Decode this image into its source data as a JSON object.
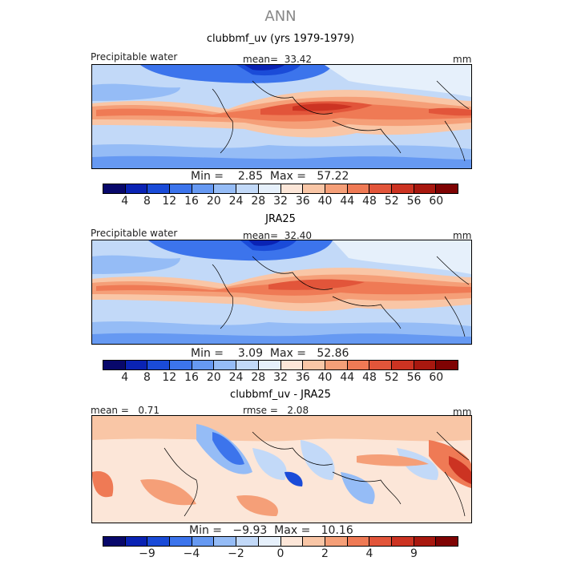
{
  "supertitle": "ANN",
  "colors": {
    "abs": [
      "#08086b",
      "#0a23b4",
      "#1a4bd8",
      "#3c74ec",
      "#6699f2",
      "#95bcf6",
      "#c2d9f8",
      "#e6f0fb",
      "#fce6d8",
      "#f9c6a6",
      "#f59f78",
      "#ef7a55",
      "#e2553a",
      "#cc3322",
      "#a8180f",
      "#7f0303"
    ],
    "diff": [
      "#08086b",
      "#0a23b4",
      "#1a4bd8",
      "#3c74ec",
      "#6699f2",
      "#95bcf6",
      "#c2d9f8",
      "#e6f0fb",
      "#fce6d8",
      "#f9c6a6",
      "#f59f78",
      "#ef7a55",
      "#e2553a",
      "#cc3322",
      "#a8180f",
      "#7f0303"
    ]
  },
  "panels": [
    {
      "title": "clubbmf_uv (yrs 1979-1979)",
      "left_label": "Precipitable water",
      "center_label": "mean=  33.42",
      "right_label": "mm",
      "min_max": "Min =    2.85  Max =   57.22",
      "colorbar_ticks": [
        "4",
        "8",
        "12",
        "16",
        "20",
        "24",
        "28",
        "32",
        "36",
        "40",
        "44",
        "48",
        "52",
        "56",
        "60"
      ]
    },
    {
      "title": "JRA25",
      "left_label": "Precipitable water",
      "center_label": "mean=  32.40",
      "right_label": "mm",
      "min_max": "Min =    3.09  Max =   52.86",
      "colorbar_ticks": [
        "4",
        "8",
        "12",
        "16",
        "20",
        "24",
        "28",
        "32",
        "36",
        "40",
        "44",
        "48",
        "52",
        "56",
        "60"
      ]
    },
    {
      "title": "clubbmf_uv - JRA25",
      "left_label": "mean =   0.71",
      "center_label": "rmse =   2.08",
      "right_label": "mm",
      "min_max": "Min =   −9.93  Max =   10.16",
      "colorbar_ticks": [
        "−9",
        "−4",
        "−2",
        "0",
        "2",
        "4",
        "9"
      ]
    }
  ],
  "chart_data": [
    {
      "type": "heatmap",
      "title": "clubbmf_uv (yrs 1979-1979)",
      "variable": "Precipitable water",
      "units": "mm",
      "mean": 33.42,
      "min": 2.85,
      "max": 57.22,
      "contour_levels": [
        4,
        8,
        12,
        16,
        20,
        24,
        28,
        32,
        36,
        40,
        44,
        48,
        52,
        56,
        60
      ]
    },
    {
      "type": "heatmap",
      "title": "JRA25",
      "variable": "Precipitable water",
      "units": "mm",
      "mean": 32.4,
      "min": 3.09,
      "max": 52.86,
      "contour_levels": [
        4,
        8,
        12,
        16,
        20,
        24,
        28,
        32,
        36,
        40,
        44,
        48,
        52,
        56,
        60
      ]
    },
    {
      "type": "heatmap",
      "title": "clubbmf_uv - JRA25",
      "units": "mm",
      "mean": 0.71,
      "rmse": 2.08,
      "min": -9.93,
      "max": 10.16,
      "contour_levels": [
        -9,
        -4,
        -2,
        0,
        2,
        4,
        9
      ]
    }
  ]
}
